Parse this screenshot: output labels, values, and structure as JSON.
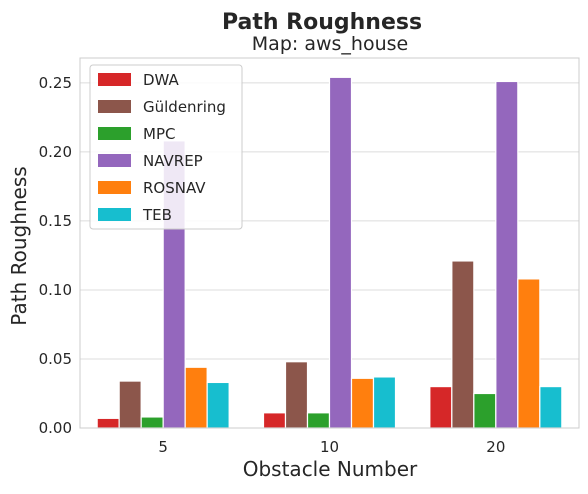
{
  "chart_data": {
    "type": "bar",
    "title": "Path Roughness",
    "subtitle": "Map: aws_house",
    "xlabel": "Obstacle Number",
    "ylabel": "Path Roughness",
    "categories": [
      "5",
      "10",
      "20"
    ],
    "ylim": [
      0,
      0.268
    ],
    "yticks": [
      0.0,
      0.05,
      0.1,
      0.15,
      0.2,
      0.25
    ],
    "ytick_labels": [
      "0.00",
      "0.05",
      "0.10",
      "0.15",
      "0.20",
      "0.25"
    ],
    "grid": true,
    "legend_position": "top-left",
    "series": [
      {
        "name": "DWA",
        "color": "#d62728",
        "values": [
          0.007,
          0.011,
          0.03
        ]
      },
      {
        "name": "Güldenring",
        "color": "#8c564b",
        "values": [
          0.034,
          0.048,
          0.121
        ]
      },
      {
        "name": "MPC",
        "color": "#2ca02c",
        "values": [
          0.008,
          0.011,
          0.025
        ]
      },
      {
        "name": "NAVREP",
        "color": "#9467bd",
        "values": [
          0.208,
          0.254,
          0.251
        ]
      },
      {
        "name": "ROSNAV",
        "color": "#ff7f0e",
        "values": [
          0.044,
          0.036,
          0.108
        ]
      },
      {
        "name": "TEB",
        "color": "#17becf",
        "values": [
          0.033,
          0.037,
          0.03
        ]
      }
    ]
  }
}
